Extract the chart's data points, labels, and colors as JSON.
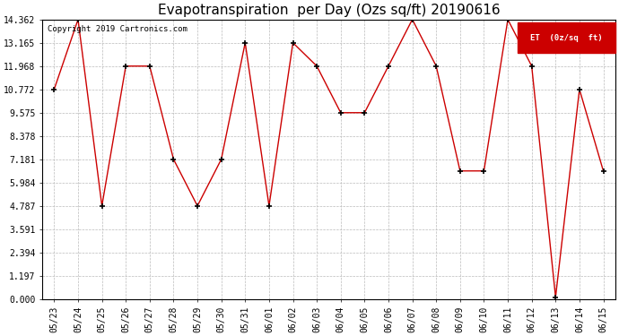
{
  "title": "Evapotranspiration  per Day (Ozs sq/ft) 20190616",
  "copyright": "Copyright 2019 Cartronics.com",
  "legend_label": "ET  (0z/sq  ft)",
  "x_labels": [
    "05/23",
    "05/24",
    "05/25",
    "05/26",
    "05/27",
    "05/28",
    "05/29",
    "05/30",
    "05/31",
    "06/01",
    "06/02",
    "06/03",
    "06/04",
    "06/05",
    "06/06",
    "06/07",
    "06/08",
    "06/09",
    "06/10",
    "06/11",
    "06/12",
    "06/13",
    "06/14",
    "06/15"
  ],
  "y_values": [
    10.772,
    14.362,
    4.787,
    11.968,
    11.968,
    7.181,
    4.787,
    7.181,
    13.165,
    4.787,
    13.165,
    11.968,
    9.575,
    9.575,
    11.968,
    14.362,
    11.968,
    6.583,
    6.583,
    14.362,
    11.968,
    0.1,
    10.772,
    6.583
  ],
  "y_ticks": [
    0.0,
    1.197,
    2.394,
    3.591,
    4.787,
    5.984,
    7.181,
    8.378,
    9.575,
    10.772,
    11.968,
    13.165,
    14.362
  ],
  "y_min": 0.0,
  "y_max": 14.362,
  "line_color": "#cc0000",
  "marker_color": "#000000",
  "bg_color": "#ffffff",
  "grid_color": "#bbbbbb",
  "legend_bg": "#cc0000",
  "legend_text_color": "#ffffff",
  "title_fontsize": 11,
  "tick_fontsize": 7,
  "copyright_fontsize": 6.5
}
